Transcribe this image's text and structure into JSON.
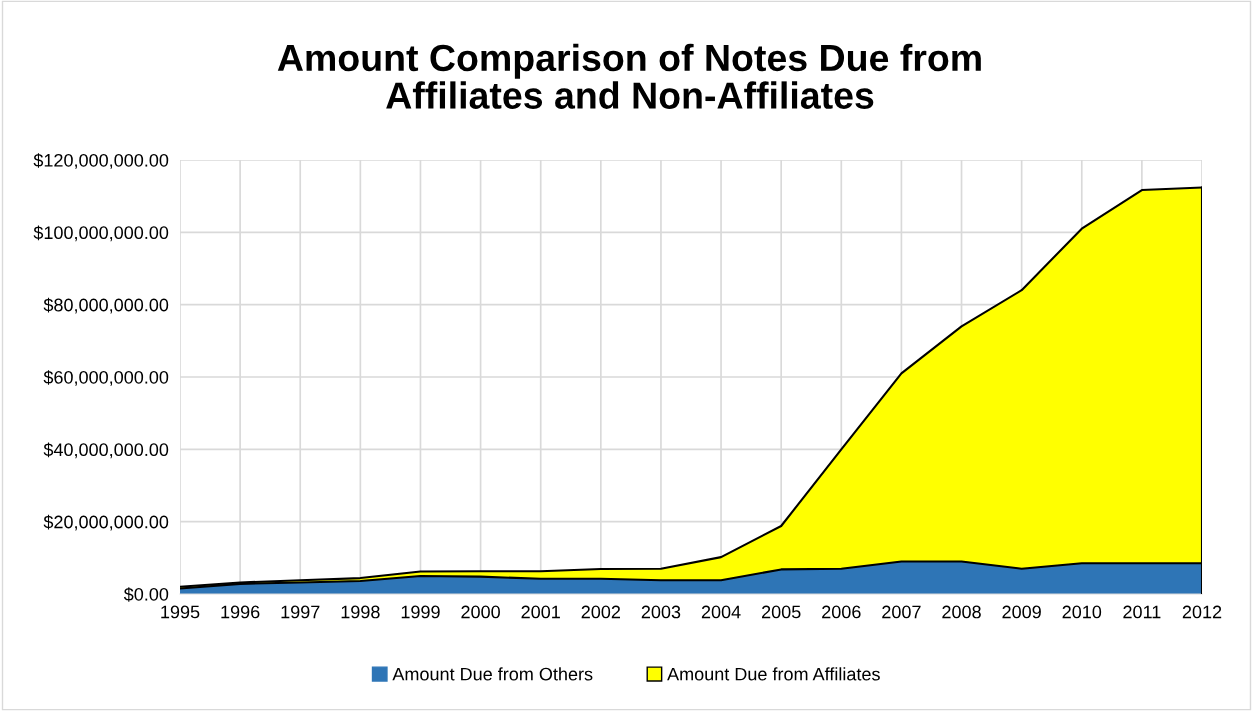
{
  "chart_data": {
    "type": "area",
    "stacked": true,
    "title": "Amount Comparison of Notes Due from\nAffiliates and Non-Affiliates",
    "categories": [
      "1995",
      "1996",
      "1997",
      "1998",
      "1999",
      "2000",
      "2001",
      "2002",
      "2003",
      "2004",
      "2005",
      "2006",
      "2007",
      "2008",
      "2009",
      "2010",
      "2011",
      "2012"
    ],
    "series": [
      {
        "name": "Amount Due from Others",
        "color": "#2e75b6",
        "values": [
          1500000,
          2800000,
          3200000,
          3600000,
          5000000,
          4800000,
          4200000,
          4200000,
          3800000,
          3800000,
          6800000,
          7000000,
          9000000,
          9000000,
          7000000,
          8500000,
          8500000,
          8500000
        ]
      },
      {
        "name": "Amount Due from Affiliates",
        "color": "#ffff00",
        "values": [
          500000,
          400000,
          600000,
          800000,
          1200000,
          1500000,
          2100000,
          2700000,
          3200000,
          6400000,
          12000000,
          33000000,
          52000000,
          65000000,
          77000000,
          92500000,
          103200000,
          103900000
        ]
      }
    ],
    "ylim": [
      0,
      120000000
    ],
    "yticks": [
      {
        "value": 0,
        "label": "$0.00"
      },
      {
        "value": 20000000,
        "label": "$20,000,000.00"
      },
      {
        "value": 40000000,
        "label": "$40,000,000.00"
      },
      {
        "value": 60000000,
        "label": "$60,000,000.00"
      },
      {
        "value": 80000000,
        "label": "$80,000,000.00"
      },
      {
        "value": 100000000,
        "label": "$100,000,000.00"
      },
      {
        "value": 120000000,
        "label": "$120,000,000.00"
      }
    ],
    "grid": true,
    "legend": "bottom"
  }
}
